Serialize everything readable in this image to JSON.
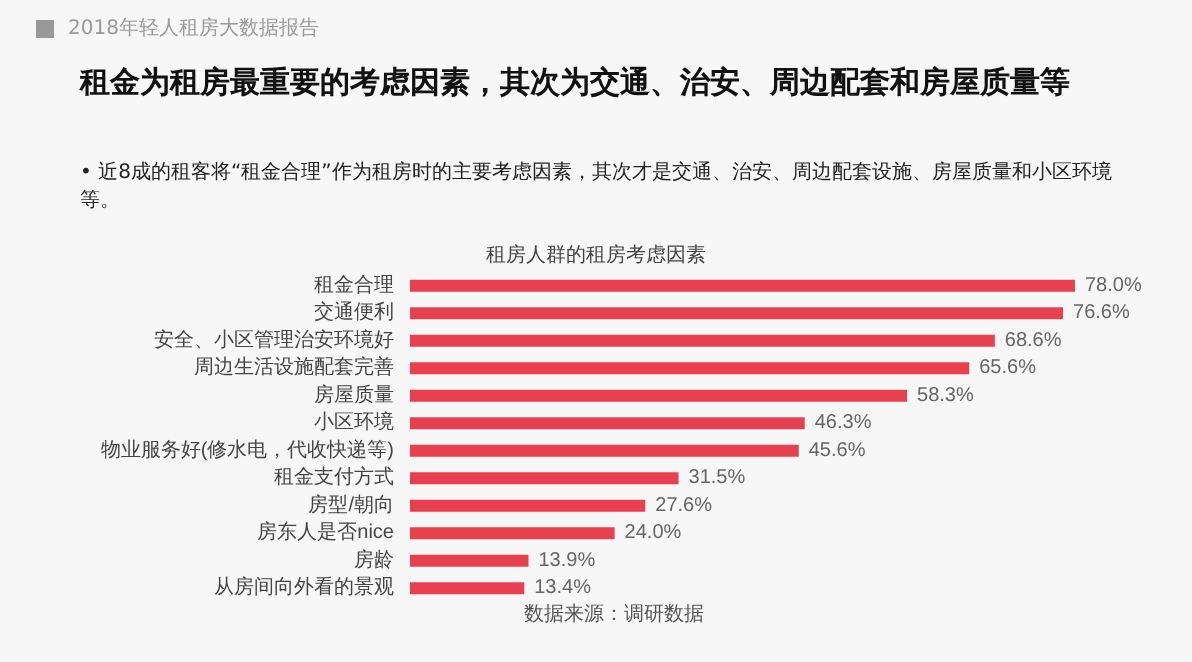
{
  "chart_data": {
    "type": "bar",
    "orientation": "horizontal",
    "title": "租房人群的租房考虑因素",
    "categories": [
      "租金合理",
      "交通便利",
      "安全、小区管理治安环境好",
      "周边生活设施配套完善",
      "房屋质量",
      "小区环境",
      "物业服务好(修水电，代收快递等)",
      "租金支付方式",
      "房型/朝向",
      "房东人是否nice",
      "房龄",
      "从房间向外看的景观"
    ],
    "values": [
      78.0,
      76.6,
      68.6,
      65.6,
      58.3,
      46.3,
      45.6,
      31.5,
      27.6,
      24.0,
      13.9,
      13.4
    ],
    "value_labels": [
      "78.0%",
      "76.6%",
      "68.6%",
      "65.6%",
      "58.3%",
      "46.3%",
      "45.6%",
      "31.5%",
      "27.6%",
      "24.0%",
      "13.9%",
      "13.4%"
    ],
    "color": "#e8404f",
    "annotations": [
      "2018年轻人租房大数据报告",
      "租金为租房最重要的考虑因素，其次为交通、治安、周边配套和房屋质量等",
      "•  近8成的租客将“租金合理”作为租房时的主要考虑因素，其次才是交通、治安、周边配套设施、房屋质量和小区环境等。",
      "数据来源：调研数据"
    ]
  }
}
